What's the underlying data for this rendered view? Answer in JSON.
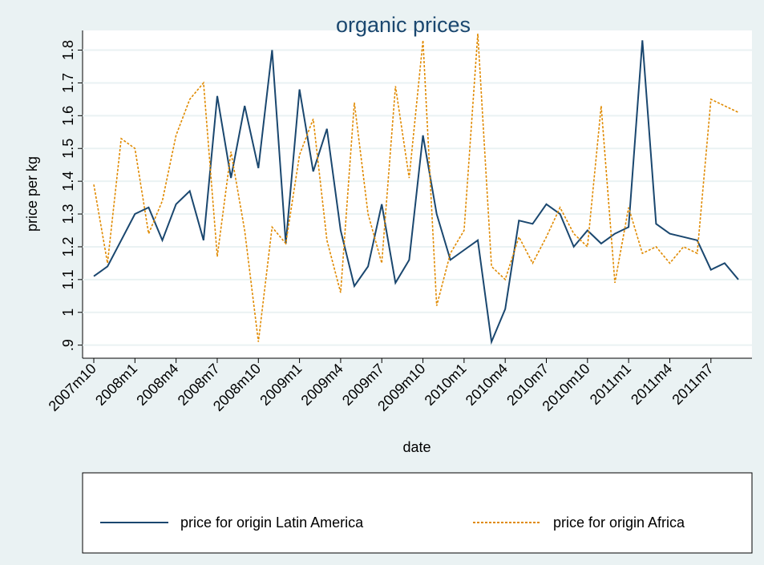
{
  "chart_data": {
    "type": "line",
    "title": "organic prices",
    "x_label": "date",
    "y_label": "price per kg",
    "categories": [
      "2007m10",
      null,
      null,
      "2008m1",
      null,
      null,
      "2008m4",
      null,
      null,
      "2008m7",
      null,
      null,
      "2008m10",
      null,
      null,
      "2009m1",
      null,
      null,
      "2009m4",
      null,
      null,
      "2009m7",
      null,
      null,
      "2009m10",
      null,
      null,
      "2010m1",
      null,
      null,
      "2010m4",
      null,
      null,
      "2010m7",
      null,
      null,
      "2010m10",
      null,
      null,
      "2011m1",
      null,
      null,
      "2011m4",
      null,
      null,
      "2011m7",
      null,
      null
    ],
    "series": [
      {
        "name": "price for origin Latin America",
        "color": "#1a476f",
        "dash": false,
        "values": [
          1.11,
          1.14,
          1.22,
          1.3,
          1.32,
          1.22,
          1.33,
          1.37,
          1.22,
          1.66,
          1.41,
          1.63,
          1.44,
          1.8,
          1.21,
          1.68,
          1.43,
          1.56,
          1.25,
          1.08,
          1.14,
          1.33,
          1.09,
          1.16,
          1.54,
          1.3,
          1.16,
          1.19,
          1.22,
          0.91,
          1.01,
          1.28,
          1.27,
          1.33,
          1.3,
          1.2,
          1.25,
          1.21,
          1.24,
          1.26,
          1.83,
          1.27,
          1.24,
          1.23,
          1.22,
          1.13,
          1.15,
          1.1
        ]
      },
      {
        "name": "price for origin Africa",
        "color": "#e08a00",
        "dash": true,
        "values": [
          1.39,
          1.15,
          1.53,
          1.5,
          1.24,
          1.34,
          1.54,
          1.65,
          1.7,
          1.17,
          1.49,
          1.25,
          0.91,
          1.26,
          1.21,
          1.48,
          1.59,
          1.22,
          1.06,
          1.64,
          1.3,
          1.15,
          1.69,
          1.41,
          1.83,
          1.02,
          1.18,
          1.25,
          1.85,
          1.14,
          1.1,
          1.23,
          1.15,
          1.23,
          1.32,
          1.24,
          1.2,
          1.63,
          1.09,
          1.32,
          1.18,
          1.2,
          1.15,
          1.2,
          1.18,
          1.65,
          1.63,
          1.61
        ]
      }
    ],
    "ylim": [
      0.86,
      1.86
    ],
    "yticks": [
      {
        "value": 0.9,
        "label": ".9"
      },
      1,
      1.1,
      1.2,
      1.3,
      1.4,
      1.5,
      1.6,
      1.7,
      1.8
    ],
    "grid": true
  }
}
